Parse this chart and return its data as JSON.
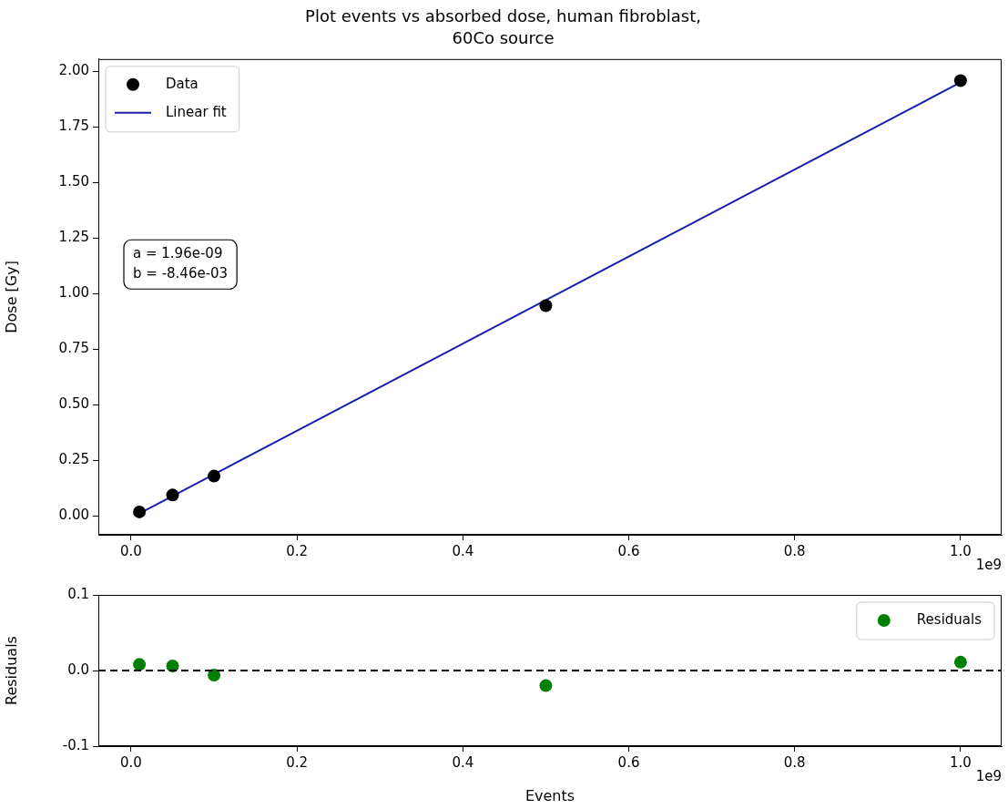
{
  "chart_data": [
    {
      "type": "scatter",
      "title": "Plot events vs absorbed dose, human fibroblast,\n60Co source",
      "ylabel": "Dose [Gy]",
      "x": [
        0.01,
        0.05,
        0.1,
        0.5,
        1.0
      ],
      "series": [
        {
          "name": "Data",
          "color": "#000000",
          "marker": "circle",
          "values": [
            0.017,
            0.093,
            0.178,
            0.945,
            1.958
          ]
        },
        {
          "name": "Linear fit",
          "type": "line",
          "color": "#1c1cb0",
          "marker": "none",
          "x": [
            0.01,
            1.0
          ],
          "values": [
            0.01,
            1.95
          ]
        }
      ],
      "xlim": [
        -0.0395,
        1.0495
      ],
      "ylim": [
        -0.086,
        2.055
      ],
      "xticks": [
        {
          "value": 0,
          "label": "0.0"
        },
        {
          "value": 0.2,
          "label": "0.2"
        },
        {
          "value": 0.4,
          "label": "0.4"
        },
        {
          "value": 0.6,
          "label": "0.6"
        },
        {
          "value": 0.8,
          "label": "0.8"
        },
        {
          "value": 1.0,
          "label": "1.0"
        }
      ],
      "yticks": [
        {
          "value": 0,
          "label": "0.00"
        },
        {
          "value": 0.25,
          "label": "0.25"
        },
        {
          "value": 0.5,
          "label": "0.50"
        },
        {
          "value": 0.75,
          "label": "0.75"
        },
        {
          "value": 1.0,
          "label": "1.00"
        },
        {
          "value": 1.25,
          "label": "1.25"
        },
        {
          "value": 1.5,
          "label": "1.50"
        },
        {
          "value": 1.75,
          "label": "1.75"
        },
        {
          "value": 2.0,
          "label": "2.00"
        }
      ],
      "annotations": [
        "a = 1.96e-09\nb = -8.46e-03",
        "1e9"
      ],
      "grid": false,
      "legend": "top left"
    },
    {
      "type": "scatter",
      "ylabel": "Residuals",
      "xlabel": "Events",
      "x": [
        0.01,
        0.05,
        0.1,
        0.5,
        1.0
      ],
      "series": [
        {
          "name": "Residuals",
          "color": "#008000",
          "values": [
            0.008,
            0.006,
            -0.006,
            -0.02,
            0.011
          ]
        }
      ],
      "xlim": [
        -0.0395,
        1.0495
      ],
      "ylim": [
        -0.1,
        0.1
      ],
      "xticks": [
        {
          "value": 0,
          "label": "0.0"
        },
        {
          "value": 0.2,
          "label": "0.2"
        },
        {
          "value": 0.4,
          "label": "0.4"
        },
        {
          "value": 0.6,
          "label": "0.6"
        },
        {
          "value": 0.8,
          "label": "0.8"
        },
        {
          "value": 1.0,
          "label": "1.0"
        }
      ],
      "yticks": [
        {
          "value": 0.1,
          "label": "0.1"
        },
        {
          "value": 0,
          "label": "0.0"
        },
        {
          "value": -0.1,
          "label": "-0.1"
        }
      ],
      "ref_lines": [
        {
          "axis": "y",
          "value": 0,
          "color": "#000000",
          "line_style": "dashed"
        }
      ],
      "annotations": [
        "1e9"
      ],
      "marker": "circle",
      "grid": false,
      "legend": "top right"
    }
  ]
}
